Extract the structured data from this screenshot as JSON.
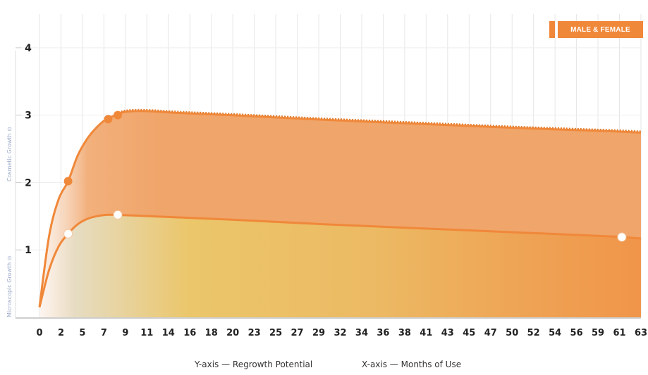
{
  "legend": {
    "label": "MALE & FEMALE"
  },
  "captions": {
    "y": "Y-axis — Regrowth Potential",
    "x": "X-axis — Months of Use",
    "y_upper_band": "Cosmetic Growth ⊙",
    "y_lower_band": "Microscopic Growth ⊙"
  },
  "colors": {
    "accent": "#f0883a",
    "upper_fill": "#f0a56a",
    "lower_fill_mid": "#ebc66a",
    "lower_fill_end": "#f0954a",
    "grid": "#e6e6e6"
  },
  "chart_data": {
    "type": "area",
    "x_tick_labels": [
      "0",
      "2",
      "5",
      "7",
      "9",
      "11",
      "14",
      "16",
      "18",
      "20",
      "23",
      "25",
      "27",
      "29",
      "32",
      "34",
      "36",
      "38",
      "41",
      "43",
      "45",
      "47",
      "50",
      "52",
      "54",
      "56",
      "59",
      "61",
      "63"
    ],
    "xlim": [
      0,
      63
    ],
    "ylim": [
      0,
      4.5
    ],
    "y_ticks": [
      1,
      2,
      3,
      4
    ],
    "grid": true,
    "legend_position": "top-right",
    "series": [
      {
        "name": "MALE & FEMALE",
        "x": [
          0,
          1,
          2,
          3,
          4,
          5,
          6,
          7,
          8,
          9,
          11,
          15,
          20,
          30,
          40,
          50,
          60,
          63
        ],
        "values": [
          0.15,
          1.2,
          1.75,
          2.02,
          2.4,
          2.65,
          2.82,
          2.94,
          3.0,
          3.05,
          3.06,
          3.03,
          3.0,
          2.93,
          2.87,
          2.81,
          2.76,
          2.74
        ],
        "markers": [
          {
            "x": 3,
            "y": 2.02
          },
          {
            "x": 7.2,
            "y": 2.94
          },
          {
            "x": 8.2,
            "y": 3.0
          }
        ]
      },
      {
        "x": [
          0,
          1,
          2,
          3,
          4,
          5,
          6,
          7,
          8,
          10,
          15,
          20,
          30,
          40,
          50,
          60,
          61,
          63
        ],
        "values": [
          0.15,
          0.7,
          1.05,
          1.24,
          1.38,
          1.46,
          1.5,
          1.52,
          1.52,
          1.51,
          1.48,
          1.45,
          1.38,
          1.32,
          1.26,
          1.2,
          1.19,
          1.17
        ],
        "markers": [
          {
            "x": 3,
            "y": 1.24
          },
          {
            "x": 8.2,
            "y": 1.52
          },
          {
            "x": 61,
            "y": 1.19
          }
        ]
      }
    ]
  }
}
